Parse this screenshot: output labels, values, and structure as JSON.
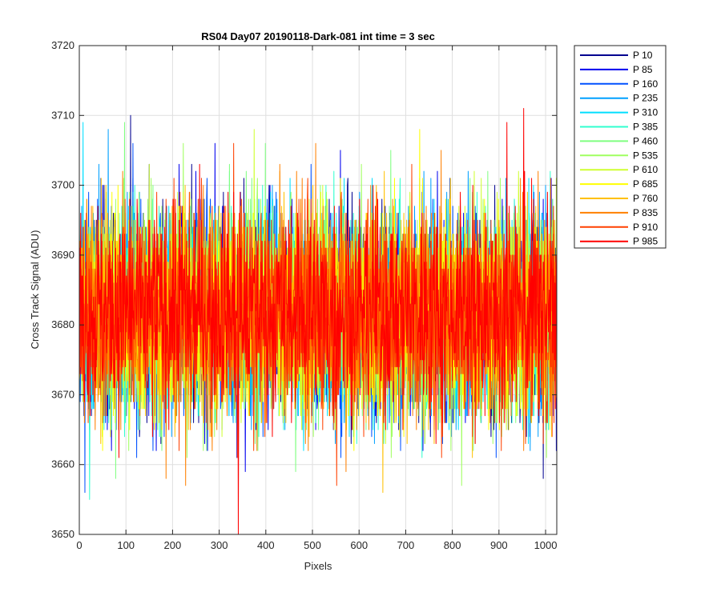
{
  "chart_data": {
    "type": "line",
    "title": "RS04 Day07 20190118-Dark-081 int time = 3 sec",
    "xlabel": "Pixels",
    "ylabel": "Cross Track Signal (ADU)",
    "xlim": [
      0,
      1024
    ],
    "ylim": [
      3650,
      3720
    ],
    "xticks": [
      "0",
      "100",
      "200",
      "300",
      "400",
      "500",
      "600",
      "700",
      "800",
      "900",
      "1000"
    ],
    "yticks": [
      "3650",
      "3660",
      "3670",
      "3680",
      "3690",
      "3700",
      "3710",
      "3720"
    ],
    "grid": true,
    "legend_position": "outside-top-right",
    "series": [
      {
        "name": "P 10",
        "color": "#00008f",
        "mean": 3682.0,
        "spread": 7.5,
        "noted_extremes": [
          {
            "x": 110,
            "y": 3710
          }
        ]
      },
      {
        "name": "P 85",
        "color": "#0000ef",
        "mean": 3682.0,
        "spread": 7.5,
        "noted_extremes": [
          {
            "x": 338,
            "y": 3661
          }
        ]
      },
      {
        "name": "P 160",
        "color": "#0050ff",
        "mean": 3682.0,
        "spread": 7.5,
        "noted_extremes": [
          {
            "x": 12,
            "y": 3656
          }
        ]
      },
      {
        "name": "P 235",
        "color": "#00a0ff",
        "mean": 3682.0,
        "spread": 7.5,
        "noted_extremes": [
          {
            "x": 62,
            "y": 3708
          }
        ]
      },
      {
        "name": "P 310",
        "color": "#00dfff",
        "mean": 3682.0,
        "spread": 7.5,
        "noted_extremes": [
          {
            "x": 8,
            "y": 3709
          }
        ]
      },
      {
        "name": "P 385",
        "color": "#30ffcf",
        "mean": 3682.0,
        "spread": 7.5,
        "noted_extremes": [
          {
            "x": 22,
            "y": 3655
          }
        ]
      },
      {
        "name": "P 460",
        "color": "#7fff80",
        "mean": 3682.0,
        "spread": 7.5,
        "noted_extremes": [
          {
            "x": 97,
            "y": 3709
          }
        ]
      },
      {
        "name": "P 535",
        "color": "#a0ff60",
        "mean": 3682.0,
        "spread": 7.5,
        "noted_extremes": [
          {
            "x": 820,
            "y": 3657
          }
        ]
      },
      {
        "name": "P 610",
        "color": "#cfff30",
        "mean": 3682.0,
        "spread": 7.5,
        "noted_extremes": [
          {
            "x": 375,
            "y": 3708
          }
        ]
      },
      {
        "name": "P 685",
        "color": "#ffff00",
        "mean": 3682.0,
        "spread": 7.5,
        "noted_extremes": [
          {
            "x": 730,
            "y": 3708
          }
        ]
      },
      {
        "name": "P 760",
        "color": "#ffc000",
        "mean": 3682.0,
        "spread": 7.5,
        "noted_extremes": [
          {
            "x": 651,
            "y": 3656
          }
        ]
      },
      {
        "name": "P 835",
        "color": "#ff8000",
        "mean": 3682.0,
        "spread": 7.5,
        "noted_extremes": [
          {
            "x": 228,
            "y": 3657
          }
        ]
      },
      {
        "name": "P 910",
        "color": "#ff4000",
        "mean": 3682.0,
        "spread": 7.5,
        "noted_extremes": [
          {
            "x": 552,
            "y": 3657
          }
        ]
      },
      {
        "name": "P 985",
        "color": "#ff0000",
        "mean": 3682.0,
        "spread": 7.5,
        "noted_extremes": [
          {
            "x": 953,
            "y": 3711
          },
          {
            "x": 341,
            "y": 3650
          },
          {
            "x": 917,
            "y": 3709
          }
        ]
      }
    ]
  }
}
